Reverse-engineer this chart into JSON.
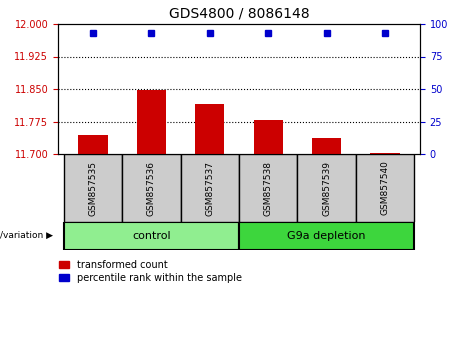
{
  "title": "GDS4800 / 8086148",
  "samples": [
    "GSM857535",
    "GSM857536",
    "GSM857537",
    "GSM857538",
    "GSM857539",
    "GSM857540"
  ],
  "transformed_counts": [
    11.745,
    11.848,
    11.815,
    11.778,
    11.738,
    11.703
  ],
  "percentile_ranks": [
    93,
    93,
    93,
    93,
    93,
    93
  ],
  "ylim_left": [
    11.7,
    12.0
  ],
  "ylim_right": [
    0,
    100
  ],
  "yticks_left": [
    11.7,
    11.775,
    11.85,
    11.925,
    12.0
  ],
  "yticks_right": [
    0,
    25,
    50,
    75,
    100
  ],
  "groups": [
    {
      "label": "control",
      "indices": [
        0,
        1,
        2
      ],
      "color": "#90EE90"
    },
    {
      "label": "G9a depletion",
      "indices": [
        3,
        4,
        5
      ],
      "color": "#3DD63D"
    }
  ],
  "bar_color": "#CC0000",
  "dot_color": "#0000CC",
  "bar_width": 0.5,
  "left_tick_color": "#CC0000",
  "right_tick_color": "#0000CC",
  "grid_color": "black",
  "grid_linestyle": "dotted",
  "background_color": "white",
  "sample_box_color": "#CCCCCC",
  "legend_items": [
    {
      "color": "#CC0000",
      "label": "transformed count"
    },
    {
      "color": "#0000CC",
      "label": "percentile rank within the sample"
    }
  ]
}
